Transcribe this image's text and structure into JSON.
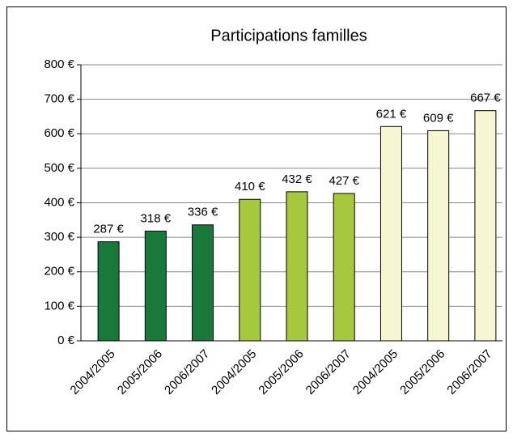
{
  "chart_data": {
    "type": "bar",
    "title": "Participations familles",
    "categories": [
      "2004/2005",
      "2005/2006",
      "2006/2007",
      "2004/2005",
      "2005/2006",
      "2006/2007",
      "2004/2005",
      "2005/2006",
      "2006/2007"
    ],
    "values": [
      287,
      318,
      336,
      410,
      432,
      427,
      621,
      609,
      667
    ],
    "value_labels": [
      "287 €",
      "318 €",
      "336 €",
      "410 €",
      "432 €",
      "427 €",
      "621 €",
      "609 €",
      "667 €"
    ],
    "colors": [
      "#18793a",
      "#18793a",
      "#18793a",
      "#a5c83d",
      "#a5c83d",
      "#a5c83d",
      "#f6f6d2",
      "#f6f6d2",
      "#f6f6d2"
    ],
    "ylim": [
      0,
      800
    ],
    "yticks": [
      {
        "value": 0,
        "label": "0 €"
      },
      {
        "value": 100,
        "label": "100 €"
      },
      {
        "value": 200,
        "label": "200 €"
      },
      {
        "value": 300,
        "label": "300 €"
      },
      {
        "value": 400,
        "label": "400 €"
      },
      {
        "value": 500,
        "label": "500 €"
      },
      {
        "value": 600,
        "label": "600 €"
      },
      {
        "value": 700,
        "label": "700 €"
      },
      {
        "value": 800,
        "label": "800 €"
      }
    ],
    "grid": true
  }
}
